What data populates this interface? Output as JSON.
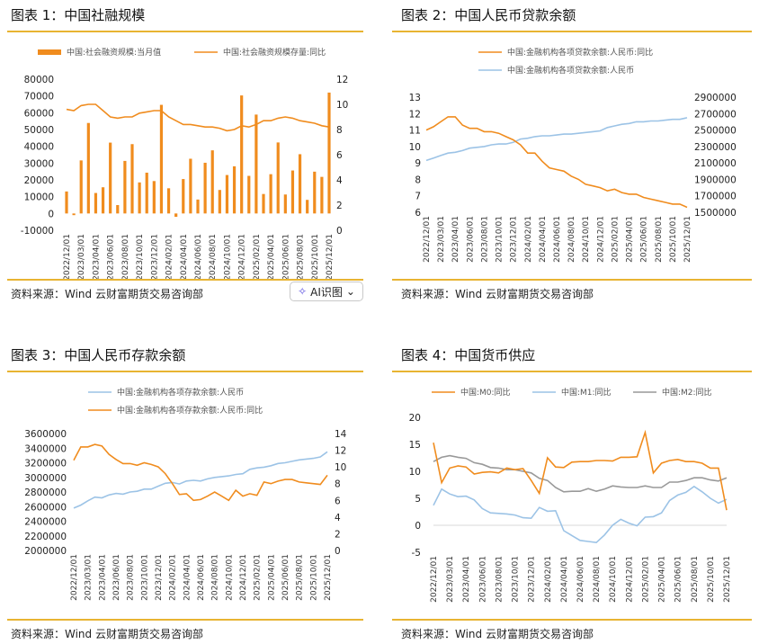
{
  "figures": [
    {
      "title": "图表 1：中国社融规模",
      "source": "资料来源：Wind 云财富期货交易咨询部"
    },
    {
      "title": "图表 2：中国人民币贷款余额",
      "source": "资料来源：Wind 云财富期货交易咨询部"
    },
    {
      "title": "图表 3：中国人民币存款余额",
      "source": "资料来源：Wind 云财富期货交易咨询部"
    },
    {
      "title": "图表 4：中国货币供应",
      "source": "资料来源：Wind 云财富期货交易咨询部"
    }
  ],
  "ai_button": {
    "label": "AI识图",
    "icon": "sparkle-icon",
    "chevron": "chevron-down-icon"
  },
  "colors": {
    "orange": "#f08c1e",
    "blue": "#9cc3e6",
    "gray": "#999999",
    "rule": "#e8b432"
  },
  "x_labels": [
    "2022/12/01",
    "2023/03/01",
    "2023/04/01",
    "2023/06/01",
    "2023/08/01",
    "2023/10/01",
    "2023/12/01",
    "2024/02/01",
    "2024/04/01",
    "2024/06/01",
    "2024/08/01",
    "2024/10/01",
    "2024/12/01",
    "2025/02/01",
    "2025/04/01",
    "2025/06/01",
    "2025/08/01",
    "2025/10/01",
    "2025/12/01"
  ],
  "chart_data": [
    {
      "type": "bar",
      "title": "图表 1：中国社融规模",
      "legend": [
        "中国:社会融资规模:当月值",
        "中国:社会融资规模存量:同比"
      ],
      "left_ylim": [
        -10000,
        80000
      ],
      "left_ticks": [
        "-10000",
        "0",
        "10000",
        "20000",
        "30000",
        "40000",
        "50000",
        "60000",
        "70000",
        "80000"
      ],
      "right_ylim": [
        0,
        12
      ],
      "right_ticks": [
        "0",
        "2",
        "4",
        "6",
        "8",
        "10",
        "12"
      ],
      "series": [
        {
          "name": "中国:社会融资规模:当月值",
          "kind": "bar",
          "axis": "left",
          "values": [
            13100,
            -1000,
            31600,
            53900,
            12200,
            15600,
            42200,
            5000,
            31300,
            41300,
            18500,
            24300,
            19300,
            64700,
            15000,
            -2000,
            20500,
            32600,
            8300,
            30200,
            37600,
            14000,
            22900,
            28100,
            70300,
            22400,
            58900,
            11600,
            23400,
            42300,
            11300,
            25600,
            35300,
            8100,
            24900,
            21800,
            72000
          ]
        },
        {
          "name": "中国:社会融资规模存量:同比",
          "kind": "line",
          "axis": "right",
          "values": [
            9.6,
            9.5,
            9.9,
            10.0,
            10.0,
            9.5,
            9.0,
            8.9,
            9.0,
            9.0,
            9.3,
            9.4,
            9.5,
            9.5,
            9.0,
            8.7,
            8.4,
            8.4,
            8.3,
            8.2,
            8.2,
            8.1,
            7.9,
            8.0,
            8.3,
            8.2,
            8.4,
            8.7,
            8.7,
            8.9,
            9.0,
            8.9,
            8.7,
            8.6,
            8.5,
            8.3,
            8.2
          ]
        }
      ]
    },
    {
      "type": "line",
      "title": "图表 2：中国人民币贷款余额",
      "legend": [
        "中国:金融机构各项贷款余额:人民币:同比",
        "中国:金融机构各项贷款余额:人民币"
      ],
      "left_ylim": [
        6,
        13
      ],
      "left_ticks": [
        "6",
        "7",
        "8",
        "9",
        "10",
        "11",
        "12",
        "13"
      ],
      "right_ylim": [
        1500000,
        2900000
      ],
      "right_ticks": [
        "1500000",
        "1700000",
        "1900000",
        "2100000",
        "2300000",
        "2500000",
        "2700000",
        "2900000"
      ],
      "series": [
        {
          "name": "中国:金融机构各项贷款余额:人民币:同比",
          "axis": "left",
          "values": [
            11.0,
            11.2,
            11.5,
            11.8,
            11.8,
            11.3,
            11.1,
            11.1,
            10.9,
            10.9,
            10.8,
            10.6,
            10.4,
            10.1,
            9.6,
            9.6,
            9.1,
            8.7,
            8.6,
            8.5,
            8.2,
            8.0,
            7.7,
            7.6,
            7.5,
            7.3,
            7.4,
            7.2,
            7.1,
            7.1,
            6.9,
            6.8,
            6.7,
            6.6,
            6.5,
            6.5,
            6.3
          ]
        },
        {
          "name": "中国:金融机构各项贷款余额:人民币",
          "axis": "right",
          "values": [
            2130000,
            2160000,
            2190000,
            2220000,
            2230000,
            2250000,
            2280000,
            2290000,
            2300000,
            2320000,
            2330000,
            2330000,
            2350000,
            2390000,
            2400000,
            2420000,
            2430000,
            2430000,
            2440000,
            2450000,
            2450000,
            2460000,
            2470000,
            2480000,
            2490000,
            2530000,
            2550000,
            2570000,
            2580000,
            2600000,
            2600000,
            2610000,
            2610000,
            2620000,
            2630000,
            2630000,
            2650000
          ]
        }
      ]
    },
    {
      "type": "line",
      "title": "图表 3：中国人民币存款余额",
      "legend": [
        "中国:金融机构各项存款余额:人民币",
        "中国:金融机构各项存款余额:人民币:同比"
      ],
      "left_ylim": [
        2000000,
        3600000
      ],
      "left_ticks": [
        "2000000",
        "2200000",
        "2400000",
        "2600000",
        "2800000",
        "3000000",
        "3200000",
        "3400000",
        "3600000"
      ],
      "right_ylim": [
        0,
        14
      ],
      "right_ticks": [
        "0",
        "2",
        "4",
        "6",
        "8",
        "10",
        "12",
        "14"
      ],
      "series": [
        {
          "name": "中国:金融机构各项存款余额:人民币",
          "axis": "left",
          "values": [
            2580000,
            2620000,
            2680000,
            2730000,
            2720000,
            2760000,
            2780000,
            2770000,
            2800000,
            2810000,
            2840000,
            2840000,
            2880000,
            2920000,
            2930000,
            2910000,
            2950000,
            2960000,
            2950000,
            2980000,
            3000000,
            3010000,
            3020000,
            3040000,
            3050000,
            3110000,
            3130000,
            3140000,
            3160000,
            3190000,
            3200000,
            3220000,
            3240000,
            3250000,
            3260000,
            3280000,
            3350000
          ]
        },
        {
          "name": "中国:金融机构各项存款余额:人民币:同比",
          "axis": "right",
          "values": [
            10.8,
            12.4,
            12.4,
            12.7,
            12.5,
            11.5,
            10.9,
            10.4,
            10.4,
            10.2,
            10.5,
            10.3,
            10.0,
            9.2,
            8.0,
            6.7,
            6.8,
            6.0,
            6.1,
            6.5,
            7.0,
            6.5,
            6.0,
            7.2,
            6.5,
            6.8,
            6.6,
            8.2,
            8.0,
            8.3,
            8.5,
            8.5,
            8.2,
            8.1,
            8.0,
            7.9,
            9.0
          ]
        }
      ]
    },
    {
      "type": "line",
      "title": "图表 4：中国货币供应",
      "legend": [
        "中国:M0:同比",
        "中国:M1:同比",
        "中国:M2:同比"
      ],
      "ylim": [
        -5,
        20
      ],
      "ticks": [
        "-5",
        "0",
        "5",
        "10",
        "15",
        "20"
      ],
      "series": [
        {
          "name": "中国:M0:同比",
          "values": [
            15.3,
            7.9,
            10.6,
            11.0,
            10.8,
            9.5,
            9.8,
            9.9,
            9.7,
            10.6,
            10.3,
            10.5,
            8.3,
            5.9,
            12.5,
            10.8,
            10.7,
            11.7,
            11.8,
            11.8,
            12.0,
            12.0,
            11.9,
            12.6,
            12.6,
            12.7,
            17.2,
            9.7,
            11.5,
            12.0,
            12.2,
            11.8,
            11.8,
            11.5,
            10.6,
            10.6,
            2.8
          ]
        },
        {
          "name": "中国:M1:同比",
          "values": [
            3.7,
            6.7,
            5.8,
            5.3,
            5.4,
            4.7,
            3.1,
            2.3,
            2.2,
            2.1,
            1.9,
            1.4,
            1.3,
            3.3,
            2.6,
            2.7,
            -1.0,
            -1.9,
            -2.8,
            -3.0,
            -3.2,
            -1.8,
            0.0,
            1.1,
            0.4,
            -0.1,
            1.5,
            1.6,
            2.3,
            4.6,
            5.6,
            6.1,
            7.2,
            6.2,
            5.0,
            4.1,
            4.8
          ]
        },
        {
          "name": "中国:M2:同比",
          "values": [
            11.8,
            12.6,
            12.9,
            12.6,
            12.4,
            11.6,
            11.3,
            10.7,
            10.6,
            10.3,
            10.3,
            10.0,
            9.7,
            8.7,
            8.3,
            7.0,
            6.2,
            6.3,
            6.3,
            6.8,
            6.3,
            6.7,
            7.3,
            7.1,
            7.0,
            7.0,
            7.3,
            7.0,
            7.0,
            8.0,
            8.0,
            8.3,
            8.8,
            8.8,
            8.4,
            8.2,
            8.8
          ]
        }
      ]
    }
  ]
}
